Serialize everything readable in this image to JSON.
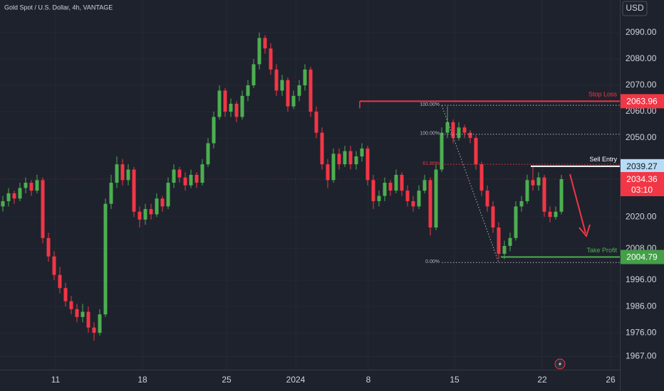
{
  "chart_data": {
    "type": "candlestick",
    "title": "Gold Spot / U.S. Dollar, 4h, VANTAGE",
    "currency": "USD",
    "ylim": [
      1962,
      2102.4
    ],
    "yticks": [
      {
        "value": 2090,
        "label": "2090.00"
      },
      {
        "value": 2080,
        "label": "2080.00"
      },
      {
        "value": 2070,
        "label": "2070.00"
      },
      {
        "value": 2060,
        "label": "2060.00"
      },
      {
        "value": 2050,
        "label": "2050.00"
      },
      {
        "value": 2020,
        "label": "2020.00"
      },
      {
        "value": 2008,
        "label": "2008.00"
      },
      {
        "value": 1996,
        "label": "1996.00"
      },
      {
        "value": 1986,
        "label": "1986.00"
      },
      {
        "value": 1976,
        "label": "1976.00"
      },
      {
        "value": 1967,
        "label": "1967.00"
      }
    ],
    "xticks": [
      "11",
      "18",
      "25",
      "2024",
      "8",
      "15",
      "22",
      "26"
    ],
    "up_color": "#4caf50",
    "down_color": "#f23645",
    "grid": true,
    "last_price": 2034.36,
    "countdown": "03:10",
    "levels": [
      {
        "name": "Stop Loss",
        "value": 2063.96,
        "color": "#f23645",
        "tag_color": "#f23645",
        "tag_text": "#ffffff"
      },
      {
        "name": "Sell Entry",
        "value": 2039.27,
        "color": "#ffffff",
        "tag_color": "#b9dcf6",
        "tag_text": "#131722"
      },
      {
        "name": "Take Profit",
        "value": 2004.79,
        "color": "#4caf50",
        "tag_color": "#43a047",
        "tag_text": "#ffffff"
      }
    ],
    "fib": [
      {
        "label": "100.00%",
        "value": 2062.4,
        "color": "#b2b5be"
      },
      {
        "label": "100.00%",
        "value": 2051.4,
        "color": "#b2b5be"
      },
      {
        "label": "61.80%",
        "value": 2040.0,
        "color": "#f23645"
      },
      {
        "label": "0.00%",
        "value": 2002.7,
        "color": "#b2b5be"
      }
    ],
    "ohlc": [
      [
        2024,
        2028,
        2022,
        2026
      ],
      [
        2026,
        2031,
        2024,
        2029
      ],
      [
        2029,
        2030,
        2025,
        2027
      ],
      [
        2027,
        2033,
        2026,
        2031
      ],
      [
        2031,
        2035,
        2029,
        2033
      ],
      [
        2033,
        2034,
        2028,
        2030
      ],
      [
        2030,
        2036,
        2029,
        2034
      ],
      [
        2034,
        2035,
        2010,
        2012
      ],
      [
        2012,
        2014,
        2003,
        2005
      ],
      [
        2005,
        2007,
        1996,
        1998
      ],
      [
        1998,
        2001,
        1991,
        1993
      ],
      [
        1993,
        1995,
        1986,
        1988
      ],
      [
        1988,
        1990,
        1983,
        1985
      ],
      [
        1985,
        1987,
        1980,
        1982
      ],
      [
        1982,
        1987,
        1980,
        1984
      ],
      [
        1984,
        1986,
        1976,
        1978
      ],
      [
        1978,
        1980,
        1973,
        1976
      ],
      [
        1976,
        1985,
        1975,
        1983
      ],
      [
        1983,
        2027,
        1982,
        2025
      ],
      [
        2025,
        2036,
        2023,
        2033
      ],
      [
        2033,
        2043,
        2031,
        2040
      ],
      [
        2040,
        2042,
        2032,
        2034
      ],
      [
        2034,
        2040,
        2032,
        2038
      ],
      [
        2038,
        2039,
        2020,
        2022
      ],
      [
        2022,
        2024,
        2016,
        2019
      ],
      [
        2019,
        2025,
        2017,
        2023
      ],
      [
        2023,
        2025,
        2019,
        2021
      ],
      [
        2021,
        2029,
        2020,
        2027
      ],
      [
        2027,
        2028,
        2022,
        2024
      ],
      [
        2024,
        2035,
        2023,
        2033
      ],
      [
        2033,
        2040,
        2031,
        2038
      ],
      [
        2038,
        2039,
        2033,
        2035
      ],
      [
        2035,
        2037,
        2030,
        2032
      ],
      [
        2032,
        2038,
        2031,
        2036
      ],
      [
        2036,
        2037,
        2031,
        2033
      ],
      [
        2033,
        2042,
        2032,
        2040
      ],
      [
        2040,
        2050,
        2039,
        2048
      ],
      [
        2048,
        2060,
        2046,
        2058
      ],
      [
        2058,
        2070,
        2057,
        2068
      ],
      [
        2068,
        2069,
        2058,
        2060
      ],
      [
        2060,
        2065,
        2058,
        2063
      ],
      [
        2063,
        2064,
        2056,
        2058
      ],
      [
        2058,
        2068,
        2057,
        2066
      ],
      [
        2066,
        2072,
        2064,
        2070
      ],
      [
        2070,
        2080,
        2069,
        2078
      ],
      [
        2078,
        2090,
        2076,
        2088
      ],
      [
        2088,
        2089,
        2082,
        2084
      ],
      [
        2084,
        2086,
        2074,
        2076
      ],
      [
        2076,
        2078,
        2066,
        2068
      ],
      [
        2068,
        2074,
        2066,
        2072
      ],
      [
        2072,
        2073,
        2060,
        2062
      ],
      [
        2062,
        2068,
        2061,
        2066
      ],
      [
        2066,
        2072,
        2064,
        2070
      ],
      [
        2070,
        2078,
        2068,
        2076
      ],
      [
        2076,
        2077,
        2058,
        2060
      ],
      [
        2060,
        2062,
        2050,
        2052
      ],
      [
        2052,
        2054,
        2038,
        2040
      ],
      [
        2040,
        2042,
        2031,
        2034
      ],
      [
        2034,
        2046,
        2033,
        2044
      ],
      [
        2044,
        2046,
        2038,
        2040
      ],
      [
        2040,
        2047,
        2039,
        2045
      ],
      [
        2045,
        2047,
        2038,
        2040
      ],
      [
        2040,
        2045,
        2038,
        2043
      ],
      [
        2043,
        2048,
        2041,
        2046
      ],
      [
        2046,
        2047,
        2032,
        2034
      ],
      [
        2034,
        2036,
        2023,
        2026
      ],
      [
        2026,
        2030,
        2024,
        2028
      ],
      [
        2028,
        2035,
        2026,
        2033
      ],
      [
        2033,
        2034,
        2028,
        2030
      ],
      [
        2030,
        2038,
        2029,
        2036
      ],
      [
        2036,
        2037,
        2028,
        2030
      ],
      [
        2030,
        2032,
        2024,
        2026
      ],
      [
        2026,
        2028,
        2022,
        2024
      ],
      [
        2024,
        2032,
        2023,
        2030
      ],
      [
        2030,
        2036,
        2029,
        2034
      ],
      [
        2034,
        2035,
        2013,
        2016
      ],
      [
        2016,
        2040,
        2015,
        2038
      ],
      [
        2038,
        2054,
        2037,
        2052
      ],
      [
        2052,
        2062,
        2050,
        2056
      ],
      [
        2056,
        2057,
        2048,
        2050
      ],
      [
        2050,
        2056,
        2049,
        2054
      ],
      [
        2054,
        2055,
        2050,
        2052
      ],
      [
        2052,
        2053,
        2048,
        2050
      ],
      [
        2050,
        2051,
        2038,
        2040
      ],
      [
        2040,
        2041,
        2028,
        2030
      ],
      [
        2030,
        2032,
        2022,
        2024
      ],
      [
        2024,
        2026,
        2014,
        2016
      ],
      [
        2016,
        2018,
        2004,
        2006
      ],
      [
        2006,
        2011,
        2004,
        2009
      ],
      [
        2009,
        2014,
        2007,
        2012
      ],
      [
        2012,
        2026,
        2011,
        2024
      ],
      [
        2024,
        2028,
        2022,
        2026
      ],
      [
        2026,
        2036,
        2025,
        2034
      ],
      [
        2034,
        2039,
        2030,
        2032
      ],
      [
        2032,
        2037,
        2030,
        2035
      ],
      [
        2035,
        2036,
        2020,
        2022
      ],
      [
        2022,
        2024,
        2018,
        2020
      ],
      [
        2020,
        2024,
        2019,
        2022
      ],
      [
        2022,
        2036,
        2021,
        2034.36
      ]
    ]
  }
}
